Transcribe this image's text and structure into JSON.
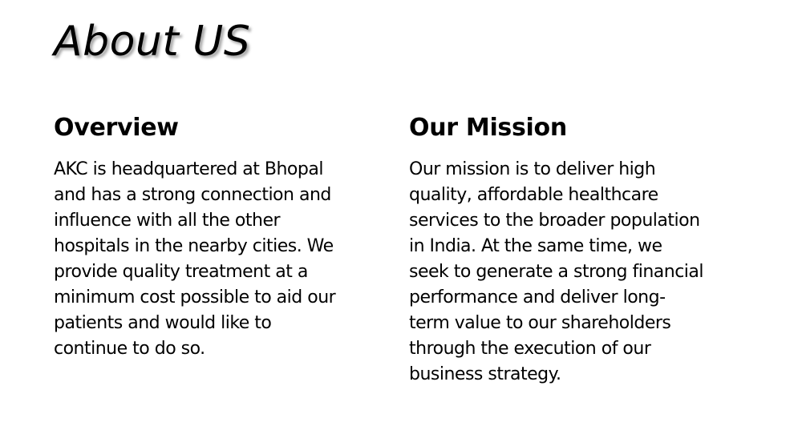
{
  "slide": {
    "title": "About US",
    "overview": {
      "heading": "Overview",
      "lines": [
        "AKC is headquartered at Bhopal",
        "and has a strong connection and",
        "influence with all the other",
        "hospitals in the nearby cities. We",
        "provide quality treatment at a",
        "minimum cost possible to aid our",
        "patients and would like to",
        "continue to do so."
      ]
    },
    "mission": {
      "heading": "Our Mission",
      "lines": [
        "Our mission is to deliver high",
        "quality, affordable healthcare",
        "services to the broader population",
        "in India. At the same time, we",
        "seek to generate a strong financial",
        "performance and deliver long-",
        "term value to our shareholders",
        "through the execution of our",
        "business strategy."
      ]
    }
  }
}
